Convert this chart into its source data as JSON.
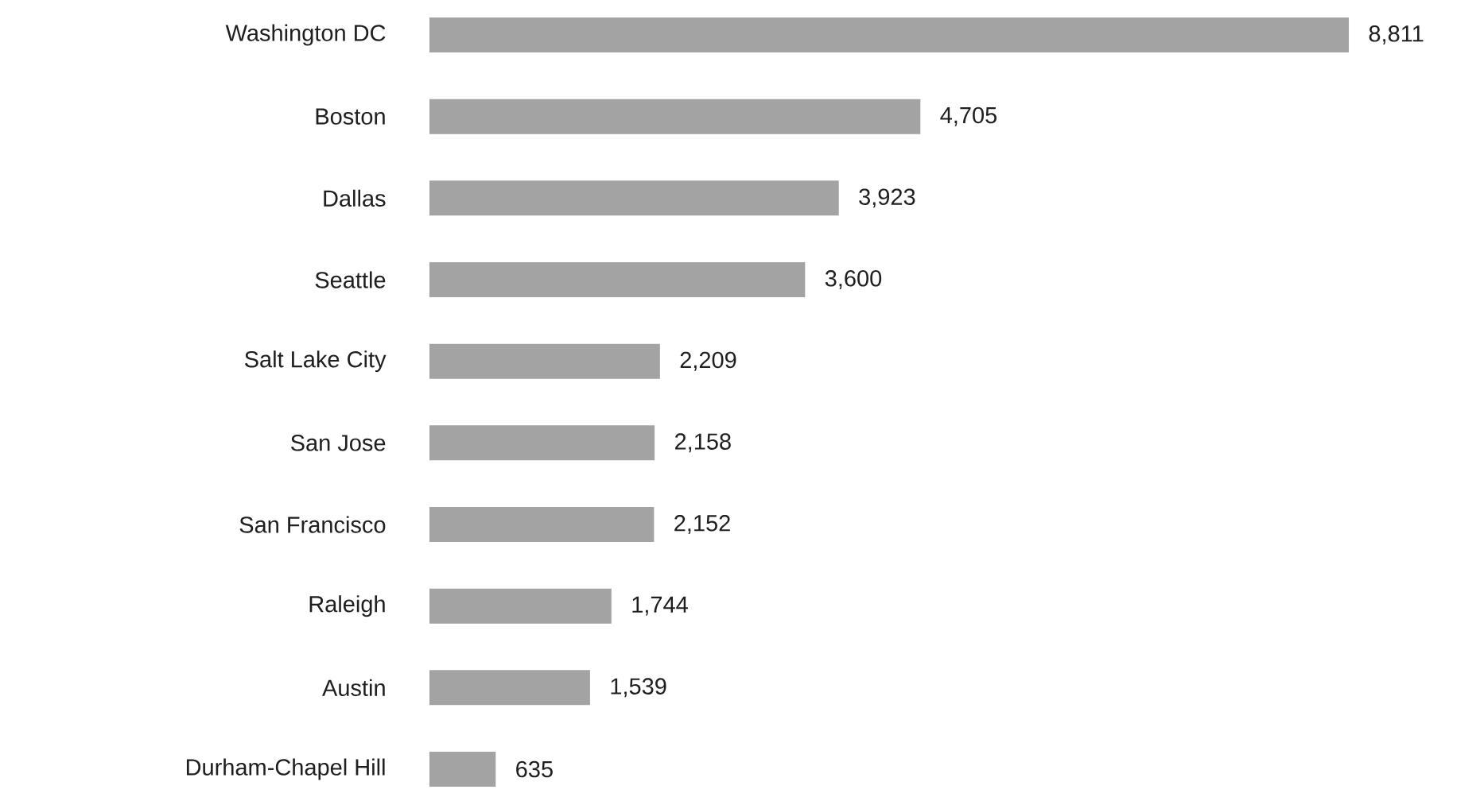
{
  "chart_data": {
    "type": "bar",
    "orientation": "horizontal",
    "categories": [
      "Washington DC",
      "Boston",
      "Dallas",
      "Seattle",
      "Salt Lake City",
      "San Jose",
      "San Francisco",
      "Raleigh",
      "Austin",
      "Durham-Chapel Hill"
    ],
    "values": [
      8811,
      4705,
      3923,
      3600,
      2209,
      2158,
      2152,
      1744,
      1539,
      635
    ],
    "value_labels": [
      "8,811",
      "4,705",
      "3,923",
      "3,600",
      "2,209",
      "2,158",
      "2,152",
      "1,744",
      "1,539",
      "635"
    ],
    "color": "#a3a3a3"
  }
}
